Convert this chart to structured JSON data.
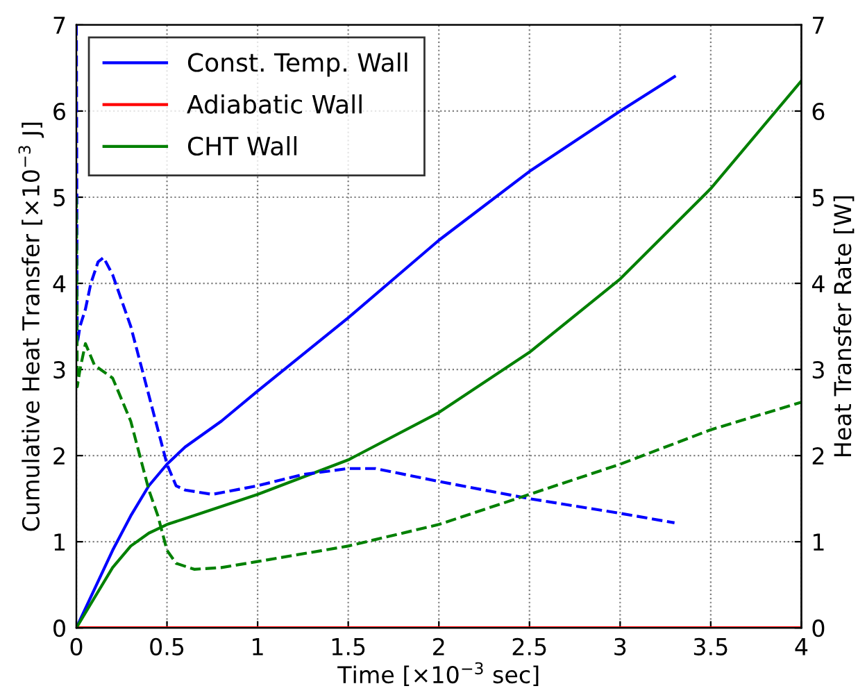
{
  "chart_data": {
    "type": "line",
    "xlabel": "Time [×10$^{−3}$ sec]",
    "ylabel": "Cumulative Heat Transfer [×10$^{−3}$ J]",
    "y2label": "Heat Transfer Rate [W]",
    "xlim": [
      0,
      4
    ],
    "xticks": [
      0,
      0.5,
      1,
      1.5,
      2,
      2.5,
      3,
      3.5,
      4
    ],
    "ylim": [
      0,
      7
    ],
    "yticks": [
      0,
      1,
      2,
      3,
      4,
      5,
      6,
      7
    ],
    "y2lim": [
      0,
      7
    ],
    "y2ticks": [
      0,
      1,
      2,
      3,
      4,
      5,
      6,
      7
    ],
    "grid": true,
    "legend": "top left",
    "marker": "none",
    "series": [
      {
        "name": "Const. Temp. Wall",
        "color": "#0000ff",
        "line_style": "solid",
        "x": [
          0,
          0.1,
          0.2,
          0.3,
          0.4,
          0.5,
          0.6,
          0.8,
          1,
          1.5,
          2,
          2.5,
          3,
          3.3
        ],
        "values": [
          0,
          0.45,
          0.9,
          1.3,
          1.65,
          1.9,
          2.1,
          2.4,
          2.75,
          3.6,
          4.5,
          5.3,
          6.0,
          6.4
        ]
      },
      {
        "name": "Adiabatic Wall",
        "color": "#ff0000",
        "line_style": "solid",
        "x": [
          0,
          4
        ],
        "values": [
          0,
          0
        ]
      },
      {
        "name": "CHT Wall",
        "color": "#008000",
        "line_style": "solid",
        "x": [
          0,
          0.1,
          0.2,
          0.3,
          0.4,
          0.5,
          0.6,
          1,
          1.5,
          2,
          2.5,
          3,
          3.5,
          4
        ],
        "values": [
          0,
          0.35,
          0.7,
          0.95,
          1.1,
          1.2,
          1.27,
          1.55,
          1.95,
          2.5,
          3.2,
          4.05,
          5.1,
          6.35
        ]
      },
      {
        "color": "#0000ff",
        "line_style": "dashed",
        "axis": "y2",
        "x": [
          0,
          0.005,
          0.02,
          0.05,
          0.08,
          0.12,
          0.15,
          0.2,
          0.3,
          0.4,
          0.5,
          0.55,
          0.6,
          0.75,
          1,
          1.25,
          1.5,
          1.65,
          2,
          2.5,
          3,
          3.3
        ],
        "values": [
          7,
          3.3,
          3.5,
          3.7,
          4.0,
          4.25,
          4.3,
          4.1,
          3.5,
          2.7,
          1.9,
          1.65,
          1.6,
          1.55,
          1.65,
          1.78,
          1.85,
          1.85,
          1.7,
          1.5,
          1.33,
          1.22
        ]
      },
      {
        "color": "#008000",
        "line_style": "dashed",
        "axis": "y2",
        "x": [
          0,
          0.005,
          0.02,
          0.05,
          0.1,
          0.2,
          0.3,
          0.35,
          0.4,
          0.45,
          0.5,
          0.55,
          0.65,
          0.8,
          1,
          1.5,
          2,
          2.5,
          3,
          3.5,
          4
        ],
        "values": [
          5,
          2.8,
          3.0,
          3.3,
          3.05,
          2.9,
          2.4,
          2.0,
          1.6,
          1.3,
          0.9,
          0.75,
          0.68,
          0.7,
          0.77,
          0.95,
          1.2,
          1.55,
          1.9,
          2.3,
          2.62
        ]
      }
    ]
  }
}
